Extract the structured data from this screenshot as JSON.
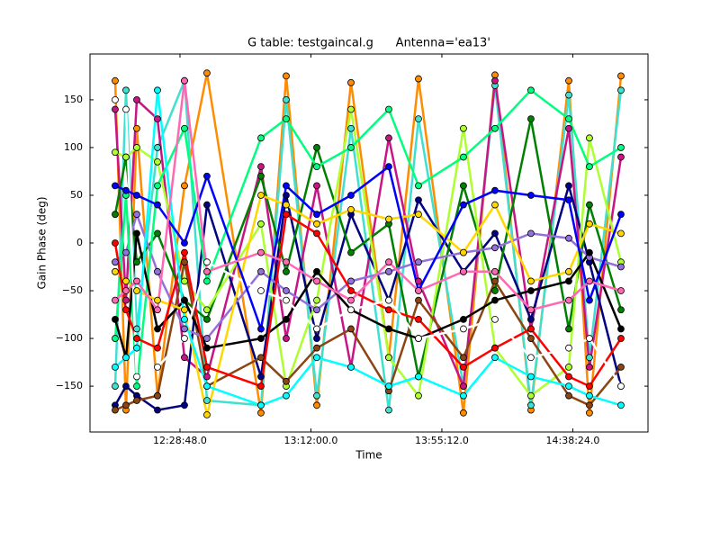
{
  "chart_data": {
    "type": "line",
    "title": "G table: testgaincal.g      Antenna='ea13'",
    "x_label": "Time",
    "y_label": "Gain Phase (deg)",
    "xlim": [
      43147,
      54192
    ],
    "ylim": [
      -198,
      198
    ],
    "xticks": [
      {
        "value": 44928,
        "label": "12:28:48.0"
      },
      {
        "value": 47520,
        "label": "13:12:00.0"
      },
      {
        "value": 50112,
        "label": "13:55:12.0"
      },
      {
        "value": 52704,
        "label": "14:38:24.0"
      }
    ],
    "yticks": [
      {
        "value": -150,
        "label": "−150"
      },
      {
        "value": -100,
        "label": "−100"
      },
      {
        "value": -50,
        "label": "−50"
      },
      0,
      50,
      100,
      150
    ],
    "x": [
      43645,
      43859,
      44073,
      44483,
      45017,
      45462,
      46531,
      47030,
      47636,
      48313,
      49061,
      49649,
      50539,
      51163,
      51875,
      52624,
      53033,
      53657
    ],
    "series": [
      {
        "color": "#ff8c00",
        "values": [
          170,
          -175,
          120,
          -160,
          60,
          178,
          -178,
          175,
          -170,
          168,
          -120,
          172,
          -178,
          176,
          -175,
          170,
          -178,
          175
        ]
      },
      {
        "color": "#40e0d0",
        "values": [
          -150,
          160,
          -90,
          100,
          170,
          -165,
          -170,
          150,
          -160,
          120,
          -175,
          130,
          -150,
          165,
          -170,
          155,
          -120,
          160
        ]
      },
      {
        "color": "#c71585",
        "values": [
          140,
          -60,
          150,
          130,
          -120,
          -140,
          80,
          -100,
          60,
          -130,
          110,
          -40,
          -150,
          170,
          -90,
          120,
          -130,
          90
        ]
      },
      {
        "color": "#000080",
        "values": [
          -170,
          -150,
          -160,
          -175,
          -170,
          40,
          -140,
          50,
          -100,
          30,
          -60,
          45,
          -30,
          10,
          -80,
          60,
          -20,
          -150
        ]
      },
      {
        "color": "#008000",
        "values": [
          30,
          90,
          -20,
          10,
          -60,
          -80,
          70,
          -30,
          100,
          -10,
          20,
          -140,
          60,
          -50,
          130,
          -90,
          40,
          -70
        ]
      },
      {
        "color": "#adff2f",
        "values": [
          95,
          90,
          100,
          85,
          -40,
          -70,
          20,
          -150,
          -60,
          140,
          -120,
          -160,
          120,
          -110,
          -160,
          -130,
          110,
          -20
        ]
      },
      {
        "color": "#8b4513",
        "values": [
          -175,
          -170,
          -165,
          -160,
          -20,
          -150,
          -120,
          -145,
          -110,
          -90,
          -155,
          -60,
          -120,
          -40,
          -100,
          -160,
          -170,
          -130
        ]
      },
      {
        "color": "#9370db",
        "values": [
          -20,
          -10,
          30,
          -30,
          -90,
          -100,
          -30,
          -50,
          -70,
          -40,
          -30,
          -20,
          -10,
          -5,
          10,
          5,
          -15,
          -25
        ]
      },
      {
        "color": "#00ff7f",
        "values": [
          -100,
          50,
          -150,
          60,
          120,
          -40,
          110,
          130,
          80,
          100,
          140,
          60,
          90,
          120,
          160,
          130,
          80,
          100
        ]
      },
      {
        "color": "#000000",
        "values": [
          -80,
          -120,
          10,
          -90,
          -60,
          -110,
          -100,
          -80,
          -30,
          -70,
          -90,
          -100,
          -80,
          -60,
          -50,
          -40,
          -10,
          -90
        ]
      },
      {
        "color": "#ffd700",
        "values": [
          -30,
          -40,
          -50,
          -60,
          -70,
          -180,
          50,
          40,
          20,
          35,
          25,
          30,
          -10,
          40,
          -40,
          -30,
          20,
          10
        ]
      },
      {
        "color": "#ff0000",
        "values": [
          0,
          -70,
          -100,
          -110,
          -10,
          -130,
          -150,
          30,
          10,
          -50,
          -70,
          -80,
          -130,
          -110,
          -90,
          -140,
          -150,
          -100
        ]
      },
      {
        "color": "#ffffff",
        "values": [
          150,
          140,
          -140,
          -130,
          -100,
          -20,
          -50,
          -60,
          -90,
          -70,
          -60,
          -100,
          -90,
          -80,
          -120,
          -110,
          -100,
          -150
        ]
      },
      {
        "color": "#00ffff",
        "values": [
          -130,
          -120,
          -110,
          160,
          -80,
          -150,
          -170,
          -160,
          -120,
          -130,
          -150,
          -140,
          -160,
          -120,
          -140,
          -150,
          -160,
          -170
        ]
      },
      {
        "color": "#0000ff",
        "values": [
          60,
          55,
          50,
          40,
          0,
          70,
          -90,
          60,
          30,
          50,
          80,
          -50,
          40,
          55,
          50,
          45,
          -60,
          30
        ]
      },
      {
        "color": "#ff69b4",
        "values": [
          -60,
          -50,
          -40,
          -70,
          170,
          -30,
          -10,
          -20,
          -40,
          -60,
          -20,
          -50,
          -30,
          -30,
          -70,
          -60,
          -40,
          -50
        ]
      }
    ]
  }
}
